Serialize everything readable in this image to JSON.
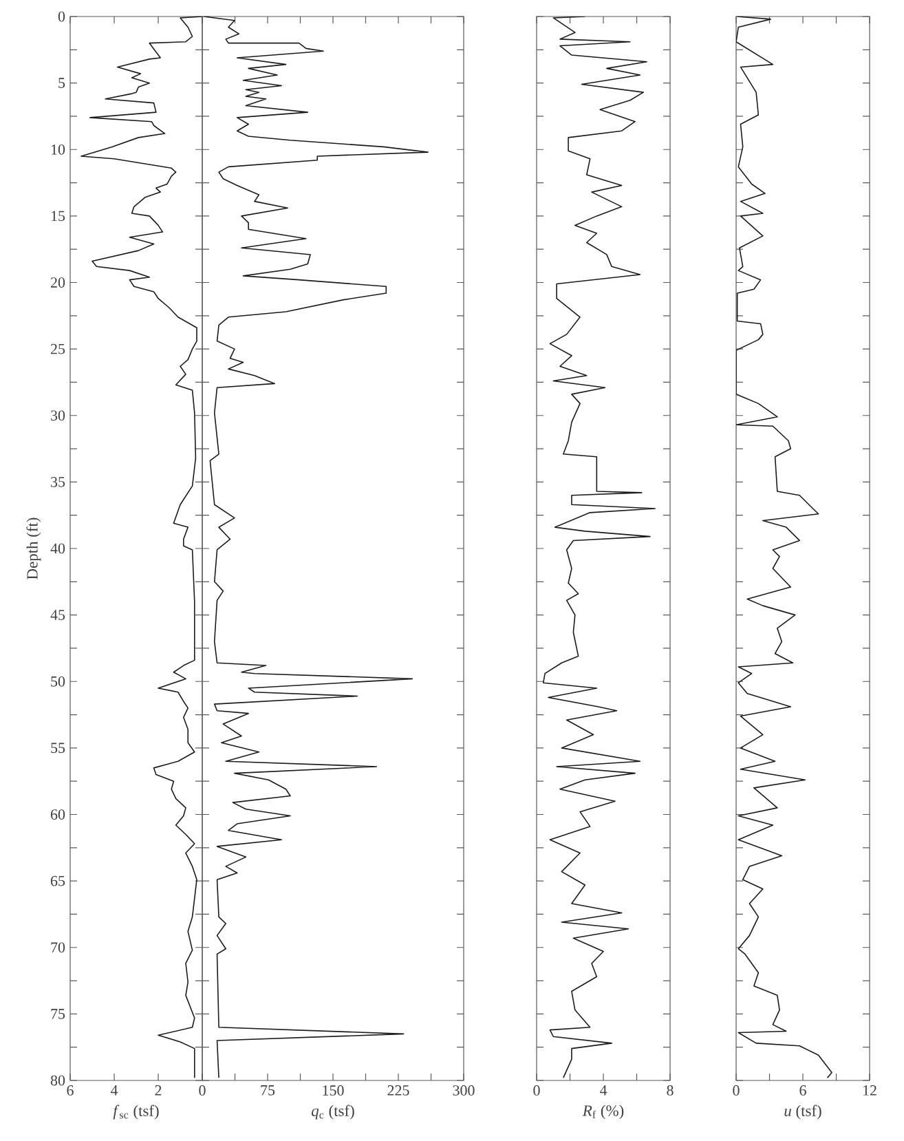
{
  "chart_data": [
    {
      "type": "line",
      "xlabel": "*f*$_{sc}$ (tsf)",
      "ylabel": "Depth (ft)",
      "xlim": [
        6,
        0
      ],
      "ylim": [
        80,
        0
      ],
      "xticks": [
        6,
        4,
        2,
        0
      ],
      "yticks": [
        0,
        {
          "value": 2.5,
          "label": null
        },
        5,
        {
          "value": 7.5,
          "label": null
        },
        10,
        {
          "value": 12.5,
          "label": null
        },
        15,
        {
          "value": 17.5,
          "label": null
        },
        20,
        {
          "value": 22.5,
          "label": null
        },
        25,
        {
          "value": 27.5,
          "label": null
        },
        30,
        {
          "value": 32.5,
          "label": null
        },
        35,
        {
          "value": 37.5,
          "label": null
        },
        40,
        {
          "value": 42.5,
          "label": null
        },
        45,
        {
          "value": 47.5,
          "label": null
        },
        50,
        {
          "value": 52.5,
          "label": null
        },
        55,
        {
          "value": 57.5,
          "label": null
        },
        60,
        {
          "value": 62.5,
          "label": null
        },
        65,
        {
          "value": 67.5,
          "label": null
        },
        70,
        {
          "value": 72.5,
          "label": null
        },
        75,
        {
          "value": 77.5,
          "label": null
        },
        80
      ],
      "series": [
        {
          "color": "#1a1a1a",
          "x": [
            0,
            1.0,
            0.65,
            0.45,
            0.75,
            2.4,
            1.9,
            2.4,
            3.85,
            2.8,
            3.2,
            2.4,
            2.9,
            3.0,
            3.2,
            4.4,
            2.2,
            2.1,
            5.1,
            2.3,
            2.2,
            1.7,
            2.9,
            4.1,
            5.5,
            4.0,
            1.4,
            1.2,
            1.4,
            1.6,
            2.1,
            1.9,
            2.6,
            3.1,
            3.2,
            2.4,
            2.0,
            1.8,
            3.3,
            2.2,
            2.9,
            5.0,
            4.8,
            3.3,
            2.4,
            3.3,
            3.1,
            2.2,
            2.0,
            1.5,
            1.1,
            0.25,
            0.25,
            0.45,
            0.65,
            1.0,
            0.75,
            1.2,
            0.45,
            0.35,
            0.3,
            0.45,
            1.0,
            1.3,
            0.65,
            0.85,
            0.85,
            0.45,
            0.35,
            0.35,
            0.85,
            1.3,
            0.75,
            2.0,
            1.1,
            0.85,
            0.65,
            0.85,
            0.65,
            0.65,
            0.35,
            1.1,
            2.2,
            2.1,
            1.3,
            1.4,
            1.2,
            0.75,
            0.85,
            1.2,
            0.75,
            0.35,
            0.75,
            0.45,
            0.25,
            0.45,
            0.65,
            0.45,
            0.75,
            0.65,
            0.75,
            0.35,
            0.45,
            2.0,
            1.0,
            0.35,
            0.35
          ],
          "values": [
            0,
            0.1,
            0.8,
            1.5,
            1.9,
            2.0,
            3.1,
            3.2,
            3.8,
            4.3,
            4.6,
            5.0,
            5.3,
            5.7,
            5.8,
            6.2,
            6.5,
            7.2,
            7.6,
            7.9,
            8.2,
            8.8,
            9.1,
            9.8,
            10.5,
            10.7,
            11.4,
            11.7,
            12.0,
            12.6,
            12.9,
            13.2,
            13.6,
            14.3,
            14.8,
            15.0,
            15.7,
            16.2,
            16.6,
            17.1,
            17.6,
            18.4,
            18.8,
            19.1,
            19.6,
            19.8,
            20.3,
            20.7,
            21.2,
            21.9,
            22.6,
            23.4,
            24.4,
            25.0,
            25.8,
            26.3,
            26.9,
            27.7,
            28.1,
            29.8,
            33.2,
            35.3,
            36.7,
            38.1,
            38.4,
            39.3,
            39.8,
            40.1,
            44.0,
            48.4,
            48.8,
            49.3,
            49.8,
            50.5,
            50.8,
            51.5,
            52.0,
            52.7,
            53.6,
            54.6,
            55.3,
            56.0,
            56.5,
            57.0,
            57.5,
            58.1,
            58.8,
            59.5,
            60.1,
            60.8,
            61.5,
            62.2,
            62.9,
            63.9,
            64.9,
            67.7,
            68.8,
            70.2,
            71.2,
            72.6,
            73.6,
            75.3,
            76.0,
            76.6,
            77.1,
            77.6,
            79.8
          ]
        }
      ]
    },
    {
      "type": "line",
      "xlabel": "*q*$_{c}$ (tsf)",
      "xlim": [
        0,
        300
      ],
      "ylim": [
        80,
        0
      ],
      "tick_labels": "x",
      "xticks": [
        {
          "value": 0,
          "label": null
        },
        {
          "value": 37.5,
          "label": null
        },
        75,
        {
          "value": 112.5,
          "label": null
        },
        150,
        {
          "value": 187.5,
          "label": null
        },
        225,
        {
          "value": 262.5,
          "label": null
        },
        300
      ],
      "yticks": [
        0,
        2.5,
        5,
        7.5,
        10,
        12.5,
        15,
        17.5,
        20,
        22.5,
        25,
        27.5,
        30,
        32.5,
        35,
        37.5,
        40,
        42.5,
        45,
        47.5,
        50,
        52.5,
        55,
        57.5,
        60,
        62.5,
        65,
        67.5,
        70,
        72.5,
        75,
        77.5,
        80
      ],
      "series": [
        {
          "color": "#1a1a1a",
          "x": [
            2,
            37,
            30,
            42,
            27,
            30,
            111,
            119,
            139,
            40,
            96,
            53,
            86,
            47,
            91,
            50,
            65,
            50,
            73,
            50,
            121,
            40,
            53,
            40,
            53,
            101,
            208,
            259,
            132,
            132,
            30,
            19,
            24,
            40,
            65,
            60,
            98,
            45,
            53,
            53,
            119,
            45,
            124,
            121,
            101,
            47,
            111,
            211,
            211,
            162,
            96,
            30,
            19,
            17,
            37,
            32,
            47,
            30,
            60,
            83,
            17,
            14,
            19,
            9,
            14,
            37,
            19,
            32,
            17,
            14,
            24,
            17,
            14,
            17,
            73,
            45,
            60,
            241,
            53,
            60,
            178,
            14,
            17,
            53,
            24,
            45,
            22,
            65,
            27,
            200,
            37,
            76,
            96,
            101,
            35,
            50,
            101,
            40,
            30,
            91,
            17,
            50,
            27,
            40,
            17,
            19,
            27,
            17,
            27,
            17,
            19,
            231,
            17,
            19
          ],
          "values": [
            0,
            0.3,
            0.8,
            1.3,
            1.7,
            2.0,
            2.0,
            2.4,
            2.6,
            3.1,
            3.6,
            3.9,
            4.4,
            4.8,
            5.2,
            5.5,
            5.7,
            6.0,
            6.2,
            6.7,
            7.2,
            7.6,
            8.1,
            8.6,
            9.0,
            9.3,
            9.8,
            10.2,
            10.5,
            10.8,
            11.3,
            11.7,
            12.2,
            12.7,
            13.4,
            13.9,
            14.4,
            15.0,
            15.5,
            16.0,
            16.7,
            17.4,
            17.9,
            18.6,
            19.0,
            19.5,
            19.8,
            20.3,
            20.8,
            21.3,
            22.2,
            22.6,
            23.2,
            24.4,
            25.0,
            25.7,
            26.0,
            26.5,
            27.0,
            27.6,
            27.9,
            29.8,
            32.9,
            33.4,
            36.7,
            37.7,
            38.4,
            39.3,
            40.1,
            42.5,
            43.2,
            43.9,
            47.0,
            48.6,
            48.8,
            49.3,
            49.4,
            49.8,
            50.5,
            50.8,
            51.1,
            51.7,
            52.2,
            52.4,
            53.2,
            54.1,
            54.6,
            55.3,
            56.0,
            56.4,
            56.9,
            57.4,
            58.1,
            58.6,
            59.1,
            59.6,
            60.1,
            60.7,
            61.2,
            61.9,
            62.4,
            63.2,
            63.9,
            64.4,
            64.9,
            67.7,
            68.2,
            69.1,
            70.1,
            70.5,
            76.0,
            76.5,
            77.0,
            79.8
          ]
        }
      ]
    },
    {
      "type": "line",
      "xlabel": "*R*$_{f}$ (%)",
      "xlim": [
        0,
        8
      ],
      "ylim": [
        80,
        0
      ],
      "tick_labels": "x",
      "xticks": [
        0,
        {
          "value": 2,
          "label": null
        },
        4,
        {
          "value": 6,
          "label": null
        },
        8
      ],
      "yticks": [
        0,
        2.5,
        5,
        7.5,
        10,
        12.5,
        15,
        17.5,
        20,
        22.5,
        25,
        27.5,
        30,
        32.5,
        35,
        37.5,
        40,
        42.5,
        45,
        47.5,
        50,
        52.5,
        55,
        57.5,
        60,
        62.5,
        65,
        67.5,
        70,
        72.5,
        75,
        77.5,
        80
      ],
      "series": [
        {
          "color": "#1a1a1a",
          "x": [
            2.9,
            1.0,
            2.3,
            1.4,
            5.6,
            1.4,
            2.1,
            6.6,
            4.2,
            6.2,
            2.7,
            6.4,
            5.6,
            3.8,
            5.9,
            5.1,
            1.9,
            1.9,
            3.2,
            3.0,
            5.1,
            3.3,
            5.1,
            3.6,
            2.3,
            3.6,
            3.0,
            4.2,
            4.5,
            6.2,
            1.2,
            1.2,
            2.6,
            1.8,
            0.8,
            2.1,
            1.4,
            3.0,
            1.0,
            4.1,
            2.1,
            2.6,
            2.1,
            1.9,
            1.6,
            3.6,
            3.6,
            6.3,
            2.1,
            2.1,
            7.1,
            3.2,
            1.1,
            2.9,
            6.8,
            2.2,
            1.8,
            2.1,
            1.9,
            2.5,
            1.8,
            2.3,
            2.2,
            2.5,
            1.5,
            0.5,
            0.4,
            3.6,
            0.7,
            3.7,
            4.8,
            1.8,
            3.4,
            1.5,
            6.2,
            1.2,
            5.9,
            2.9,
            1.4,
            4.7,
            2.6,
            3.2,
            0.8,
            2.6,
            1.5,
            2.9,
            2.1,
            5.1,
            1.5,
            5.5,
            2.2,
            4.0,
            3.3,
            3.6,
            2.1,
            2.3,
            3.2,
            0.8,
            1.0,
            4.5,
            2.1,
            2.1,
            1.6
          ],
          "values": [
            0,
            0.1,
            1.2,
            1.7,
            1.9,
            2.2,
            2.9,
            3.4,
            3.9,
            4.4,
            5.1,
            5.7,
            6.3,
            7.0,
            7.9,
            8.6,
            9.1,
            10.1,
            10.7,
            11.9,
            12.7,
            13.2,
            14.3,
            15.0,
            15.7,
            16.3,
            17.0,
            17.9,
            18.8,
            19.4,
            20.1,
            21.2,
            22.6,
            23.9,
            24.6,
            25.5,
            26.3,
            27.0,
            27.4,
            27.9,
            28.4,
            29.1,
            30.5,
            31.9,
            32.9,
            33.1,
            35.7,
            35.8,
            36.0,
            36.7,
            37.0,
            37.3,
            38.4,
            38.7,
            39.1,
            39.4,
            40.1,
            41.5,
            42.6,
            43.4,
            43.9,
            45.0,
            46.3,
            48.1,
            48.6,
            49.4,
            50.1,
            50.5,
            51.2,
            51.9,
            52.2,
            52.9,
            54.0,
            55.0,
            56.0,
            56.4,
            56.9,
            57.4,
            58.1,
            59.0,
            59.8,
            60.9,
            61.9,
            62.9,
            64.3,
            65.3,
            66.7,
            67.4,
            68.1,
            68.6,
            69.3,
            70.3,
            71.2,
            72.2,
            73.3,
            74.7,
            76.0,
            76.2,
            76.7,
            77.2,
            77.6,
            78.4,
            79.8
          ]
        }
      ]
    },
    {
      "type": "line",
      "xlabel": "*u* (tsf)",
      "xlim": [
        0,
        12
      ],
      "ylim": [
        80,
        0
      ],
      "tick_labels": "x",
      "xticks": [
        0,
        {
          "value": 3,
          "label": null
        },
        6,
        {
          "value": 9,
          "label": null
        },
        12
      ],
      "yticks": [
        0,
        2.5,
        5,
        7.5,
        10,
        12.5,
        15,
        17.5,
        20,
        22.5,
        25,
        27.5,
        30,
        32.5,
        35,
        37.5,
        40,
        42.5,
        45,
        47.5,
        50,
        52.5,
        55,
        57.5,
        60,
        62.5,
        65,
        67.5,
        70,
        72.5,
        75,
        77.5,
        80
      ],
      "series": [
        {
          "color": "#1a1a1a",
          "x": [
            0.1,
            3.1,
            0.2,
            0,
            3.3,
            0.4,
            1.8,
            2.0,
            0.4,
            0.6,
            0.2,
            1.4,
            2.6,
            0.4,
            2.4,
            0.4,
            2.4,
            0.3,
            0.6,
            0.2,
            2.2,
            1.6,
            0.1,
            0.1,
            2.2,
            2.4,
            2.0,
            0,
            0,
            2.0,
            3.7,
            0,
            3.3,
            4.7,
            4.9,
            3.5,
            3.7,
            5.7,
            6.9,
            7.4,
            2.4,
            4.5,
            5.7,
            3.3,
            3.9,
            3.3,
            4.9,
            1.0,
            2.4,
            5.3,
            3.7,
            4.1,
            3.5,
            5.1,
            0.2,
            1.4,
            0.2,
            1.0,
            4.9,
            0.4,
            2.4,
            0.4,
            3.5,
            0.4,
            6.2,
            1.6,
            3.7,
            0.2,
            3.3,
            0.2,
            4.1,
            1.2,
            0.6,
            2.4,
            1.2,
            2.0,
            1.2,
            0.2,
            0.8,
            2.0,
            1.6,
            3.7,
            3.9,
            3.3,
            4.5,
            0.2,
            1.8,
            5.7,
            7.4,
            8.6,
            8.2
          ],
          "values": [
            0,
            0.2,
            0.8,
            1.9,
            3.6,
            3.8,
            5.7,
            7.4,
            8.1,
            9.8,
            11.3,
            12.6,
            13.3,
            13.9,
            14.8,
            15.0,
            16.5,
            17.4,
            18.8,
            19.1,
            19.8,
            20.5,
            20.8,
            22.9,
            23.1,
            23.9,
            24.3,
            25.1,
            28.4,
            29.1,
            30.1,
            30.7,
            30.8,
            31.9,
            32.5,
            33.1,
            35.7,
            36.0,
            37.0,
            37.4,
            37.9,
            38.4,
            39.4,
            40.1,
            40.6,
            41.5,
            42.9,
            43.8,
            44.3,
            45.0,
            46.0,
            47.0,
            47.9,
            48.6,
            48.9,
            49.4,
            50.1,
            50.9,
            51.9,
            52.6,
            54.0,
            55.0,
            56.0,
            56.6,
            57.4,
            58.0,
            59.5,
            60.1,
            60.8,
            61.9,
            63.1,
            63.9,
            64.9,
            65.6,
            66.7,
            67.7,
            69.1,
            70.1,
            70.5,
            71.9,
            72.9,
            73.6,
            74.7,
            75.8,
            76.3,
            76.4,
            77.2,
            77.4,
            78.1,
            79.4,
            79.8
          ]
        }
      ]
    }
  ]
}
